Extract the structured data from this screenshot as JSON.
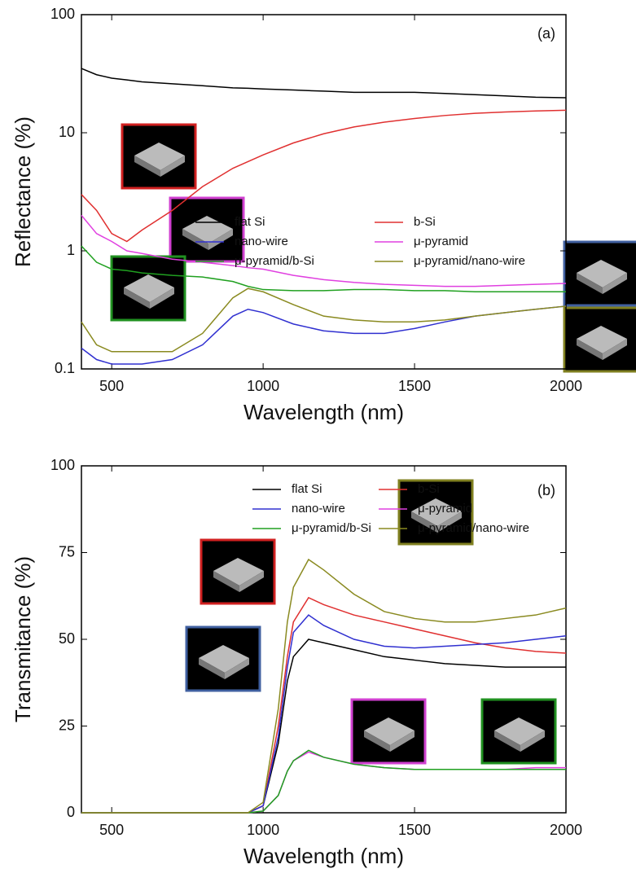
{
  "chart_data": [
    {
      "type": "line",
      "annotation": "(a)",
      "x_label": "Wavelength (nm)",
      "y_label": "Reflectance (%)",
      "yscale": "log",
      "xlim": [
        400,
        2000
      ],
      "ylim": [
        0.1,
        100
      ],
      "xticks": [
        500,
        1000,
        1500,
        2000
      ],
      "yticks": [
        0.1,
        1,
        10,
        100
      ],
      "x": [
        400,
        450,
        500,
        550,
        600,
        700,
        800,
        900,
        950,
        1000,
        1100,
        1200,
        1300,
        1400,
        1500,
        1600,
        1700,
        1800,
        1900,
        2000
      ],
      "series": [
        {
          "name": "flat Si",
          "color": "#000000",
          "values": [
            35,
            31,
            29,
            28,
            27,
            26,
            25,
            24,
            23.8,
            23.5,
            23,
            22.5,
            22,
            22,
            22,
            21.5,
            21,
            20.5,
            20,
            19.8
          ]
        },
        {
          "name": "b-Si",
          "color": "#e03030",
          "values": [
            3.0,
            2.2,
            1.4,
            1.2,
            1.5,
            2.2,
            3.5,
            5.0,
            5.7,
            6.5,
            8.2,
            9.8,
            11.2,
            12.3,
            13.2,
            14.0,
            14.6,
            15.0,
            15.3,
            15.5
          ]
        },
        {
          "name": "nano-wire",
          "color": "#3030d0",
          "values": [
            0.15,
            0.12,
            0.11,
            0.11,
            0.11,
            0.12,
            0.16,
            0.28,
            0.32,
            0.3,
            0.24,
            0.21,
            0.2,
            0.2,
            0.22,
            0.25,
            0.28,
            0.3,
            0.32,
            0.34
          ]
        },
        {
          "name": "μ-pyramid",
          "color": "#e040e0",
          "values": [
            2.0,
            1.4,
            1.2,
            1.0,
            0.95,
            0.85,
            0.8,
            0.75,
            0.72,
            0.7,
            0.62,
            0.57,
            0.54,
            0.52,
            0.51,
            0.5,
            0.5,
            0.51,
            0.52,
            0.53
          ]
        },
        {
          "name": "μ-pyramid/b-Si",
          "color": "#20a020",
          "values": [
            1.1,
            0.8,
            0.7,
            0.68,
            0.65,
            0.62,
            0.6,
            0.55,
            0.5,
            0.47,
            0.46,
            0.46,
            0.47,
            0.47,
            0.46,
            0.46,
            0.45,
            0.45,
            0.45,
            0.45
          ]
        },
        {
          "name": "μ-pyramid/nano-wire",
          "color": "#8a8a20",
          "values": [
            0.25,
            0.16,
            0.14,
            0.14,
            0.14,
            0.14,
            0.2,
            0.4,
            0.48,
            0.45,
            0.35,
            0.28,
            0.26,
            0.25,
            0.25,
            0.26,
            0.28,
            0.3,
            0.32,
            0.34
          ]
        }
      ]
    },
    {
      "type": "line",
      "annotation": "(b)",
      "x_label": "Wavelength (nm)",
      "y_label": "Transmitance (%)",
      "yscale": "linear",
      "xlim": [
        400,
        2000
      ],
      "ylim": [
        0,
        100
      ],
      "xticks": [
        500,
        1000,
        1500,
        2000
      ],
      "yticks": [
        0,
        25,
        50,
        75,
        100
      ],
      "x": [
        400,
        500,
        600,
        700,
        800,
        900,
        950,
        1000,
        1050,
        1080,
        1100,
        1150,
        1200,
        1300,
        1400,
        1500,
        1600,
        1700,
        1800,
        1900,
        2000
      ],
      "series": [
        {
          "name": "flat Si",
          "color": "#000000",
          "values": [
            0,
            0,
            0,
            0,
            0,
            0,
            0,
            2,
            20,
            38,
            45,
            50,
            49,
            47,
            45,
            44,
            43,
            42.5,
            42,
            42,
            42
          ]
        },
        {
          "name": "b-Si",
          "color": "#e03030",
          "values": [
            0,
            0,
            0,
            0,
            0,
            0,
            0,
            2,
            25,
            45,
            55,
            62,
            60,
            57,
            55,
            53,
            51,
            49,
            47.5,
            46.5,
            46
          ]
        },
        {
          "name": "nano-wire",
          "color": "#3030d0",
          "values": [
            0,
            0,
            0,
            0,
            0,
            0,
            0,
            2,
            22,
            42,
            52,
            57,
            54,
            50,
            48,
            47.5,
            48,
            48.5,
            49,
            50,
            51
          ]
        },
        {
          "name": "μ-pyramid",
          "color": "#e040e0",
          "values": [
            0,
            0,
            0,
            0,
            0,
            0,
            0,
            0.5,
            5,
            12,
            15,
            17.5,
            16,
            14,
            13,
            12.5,
            12.5,
            12.5,
            12.5,
            13,
            13
          ]
        },
        {
          "name": "μ-pyramid/b-Si",
          "color": "#20a020",
          "values": [
            0,
            0,
            0,
            0,
            0,
            0,
            0,
            0.5,
            5,
            12,
            15,
            18,
            16,
            14,
            13,
            12.5,
            12.5,
            12.5,
            12.5,
            12.5,
            12.5
          ]
        },
        {
          "name": "μ-pyramid/nano-wire",
          "color": "#8a8a20",
          "values": [
            0,
            0,
            0,
            0,
            0,
            0,
            0,
            3,
            30,
            55,
            65,
            73,
            70,
            63,
            58,
            56,
            55,
            55,
            56,
            57,
            59
          ]
        }
      ]
    }
  ]
}
